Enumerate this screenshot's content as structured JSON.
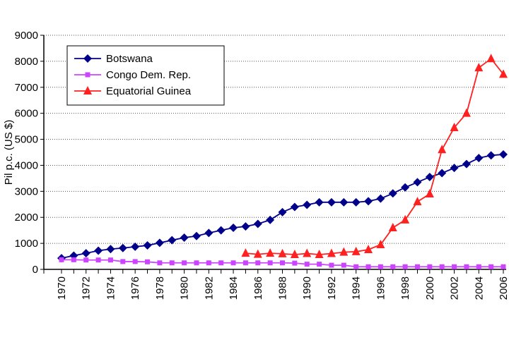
{
  "chart_data": {
    "type": "line",
    "title": "",
    "xlabel": "",
    "ylabel": "Pil p.c. (US $)",
    "ylim": [
      0,
      9000
    ],
    "yticks": [
      0,
      1000,
      2000,
      3000,
      4000,
      5000,
      6000,
      7000,
      8000,
      9000
    ],
    "xlim": [
      1970,
      2006
    ],
    "xticks": [
      1970,
      1972,
      1974,
      1976,
      1978,
      1980,
      1982,
      1984,
      1986,
      1988,
      1990,
      1992,
      1994,
      1996,
      1998,
      2000,
      2002,
      2004,
      2006
    ],
    "grid": "horizontal dotted",
    "legend_position": "top-left",
    "series": [
      {
        "name": "Botswana",
        "color": "#00008b",
        "marker": "diamond",
        "x": [
          1970,
          1971,
          1972,
          1973,
          1974,
          1975,
          1976,
          1977,
          1978,
          1979,
          1980,
          1981,
          1982,
          1983,
          1984,
          1985,
          1986,
          1987,
          1988,
          1989,
          1990,
          1991,
          1992,
          1993,
          1994,
          1995,
          1996,
          1997,
          1998,
          1999,
          2000,
          2001,
          2002,
          2003,
          2004,
          2005,
          2006
        ],
        "y": [
          430,
          530,
          620,
          720,
          780,
          820,
          870,
          920,
          1020,
          1120,
          1220,
          1280,
          1400,
          1500,
          1600,
          1650,
          1750,
          1900,
          2200,
          2400,
          2480,
          2580,
          2580,
          2580,
          2580,
          2620,
          2720,
          2920,
          3150,
          3350,
          3550,
          3700,
          3900,
          4050,
          4280,
          4380,
          4420
        ]
      },
      {
        "name": "Congo Dem. Rep.",
        "color": "#cc44ff",
        "marker": "square",
        "x": [
          1970,
          1971,
          1972,
          1973,
          1974,
          1975,
          1976,
          1977,
          1978,
          1979,
          1980,
          1981,
          1982,
          1983,
          1984,
          1985,
          1986,
          1987,
          1988,
          1989,
          1990,
          1991,
          1992,
          1993,
          1994,
          1995,
          1996,
          1997,
          1998,
          1999,
          2000,
          2001,
          2002,
          2003,
          2004,
          2005,
          2006
        ],
        "y": [
          370,
          370,
          360,
          360,
          360,
          300,
          300,
          290,
          250,
          250,
          250,
          250,
          250,
          250,
          250,
          250,
          250,
          250,
          250,
          240,
          200,
          200,
          160,
          160,
          100,
          100,
          100,
          100,
          100,
          100,
          100,
          100,
          100,
          100,
          100,
          100,
          100
        ]
      },
      {
        "name": "Equatorial Guinea",
        "color": "#ff2020",
        "marker": "triangle",
        "x": [
          1985,
          1986,
          1987,
          1988,
          1989,
          1990,
          1991,
          1992,
          1993,
          1994,
          1995,
          1996,
          1997,
          1998,
          1999,
          2000,
          2001,
          2002,
          2003,
          2004,
          2005,
          2006
        ],
        "y": [
          620,
          580,
          620,
          600,
          570,
          610,
          570,
          610,
          660,
          680,
          760,
          950,
          1600,
          1900,
          2600,
          2900,
          4600,
          5450,
          6000,
          7750,
          8100,
          7500
        ]
      }
    ]
  }
}
